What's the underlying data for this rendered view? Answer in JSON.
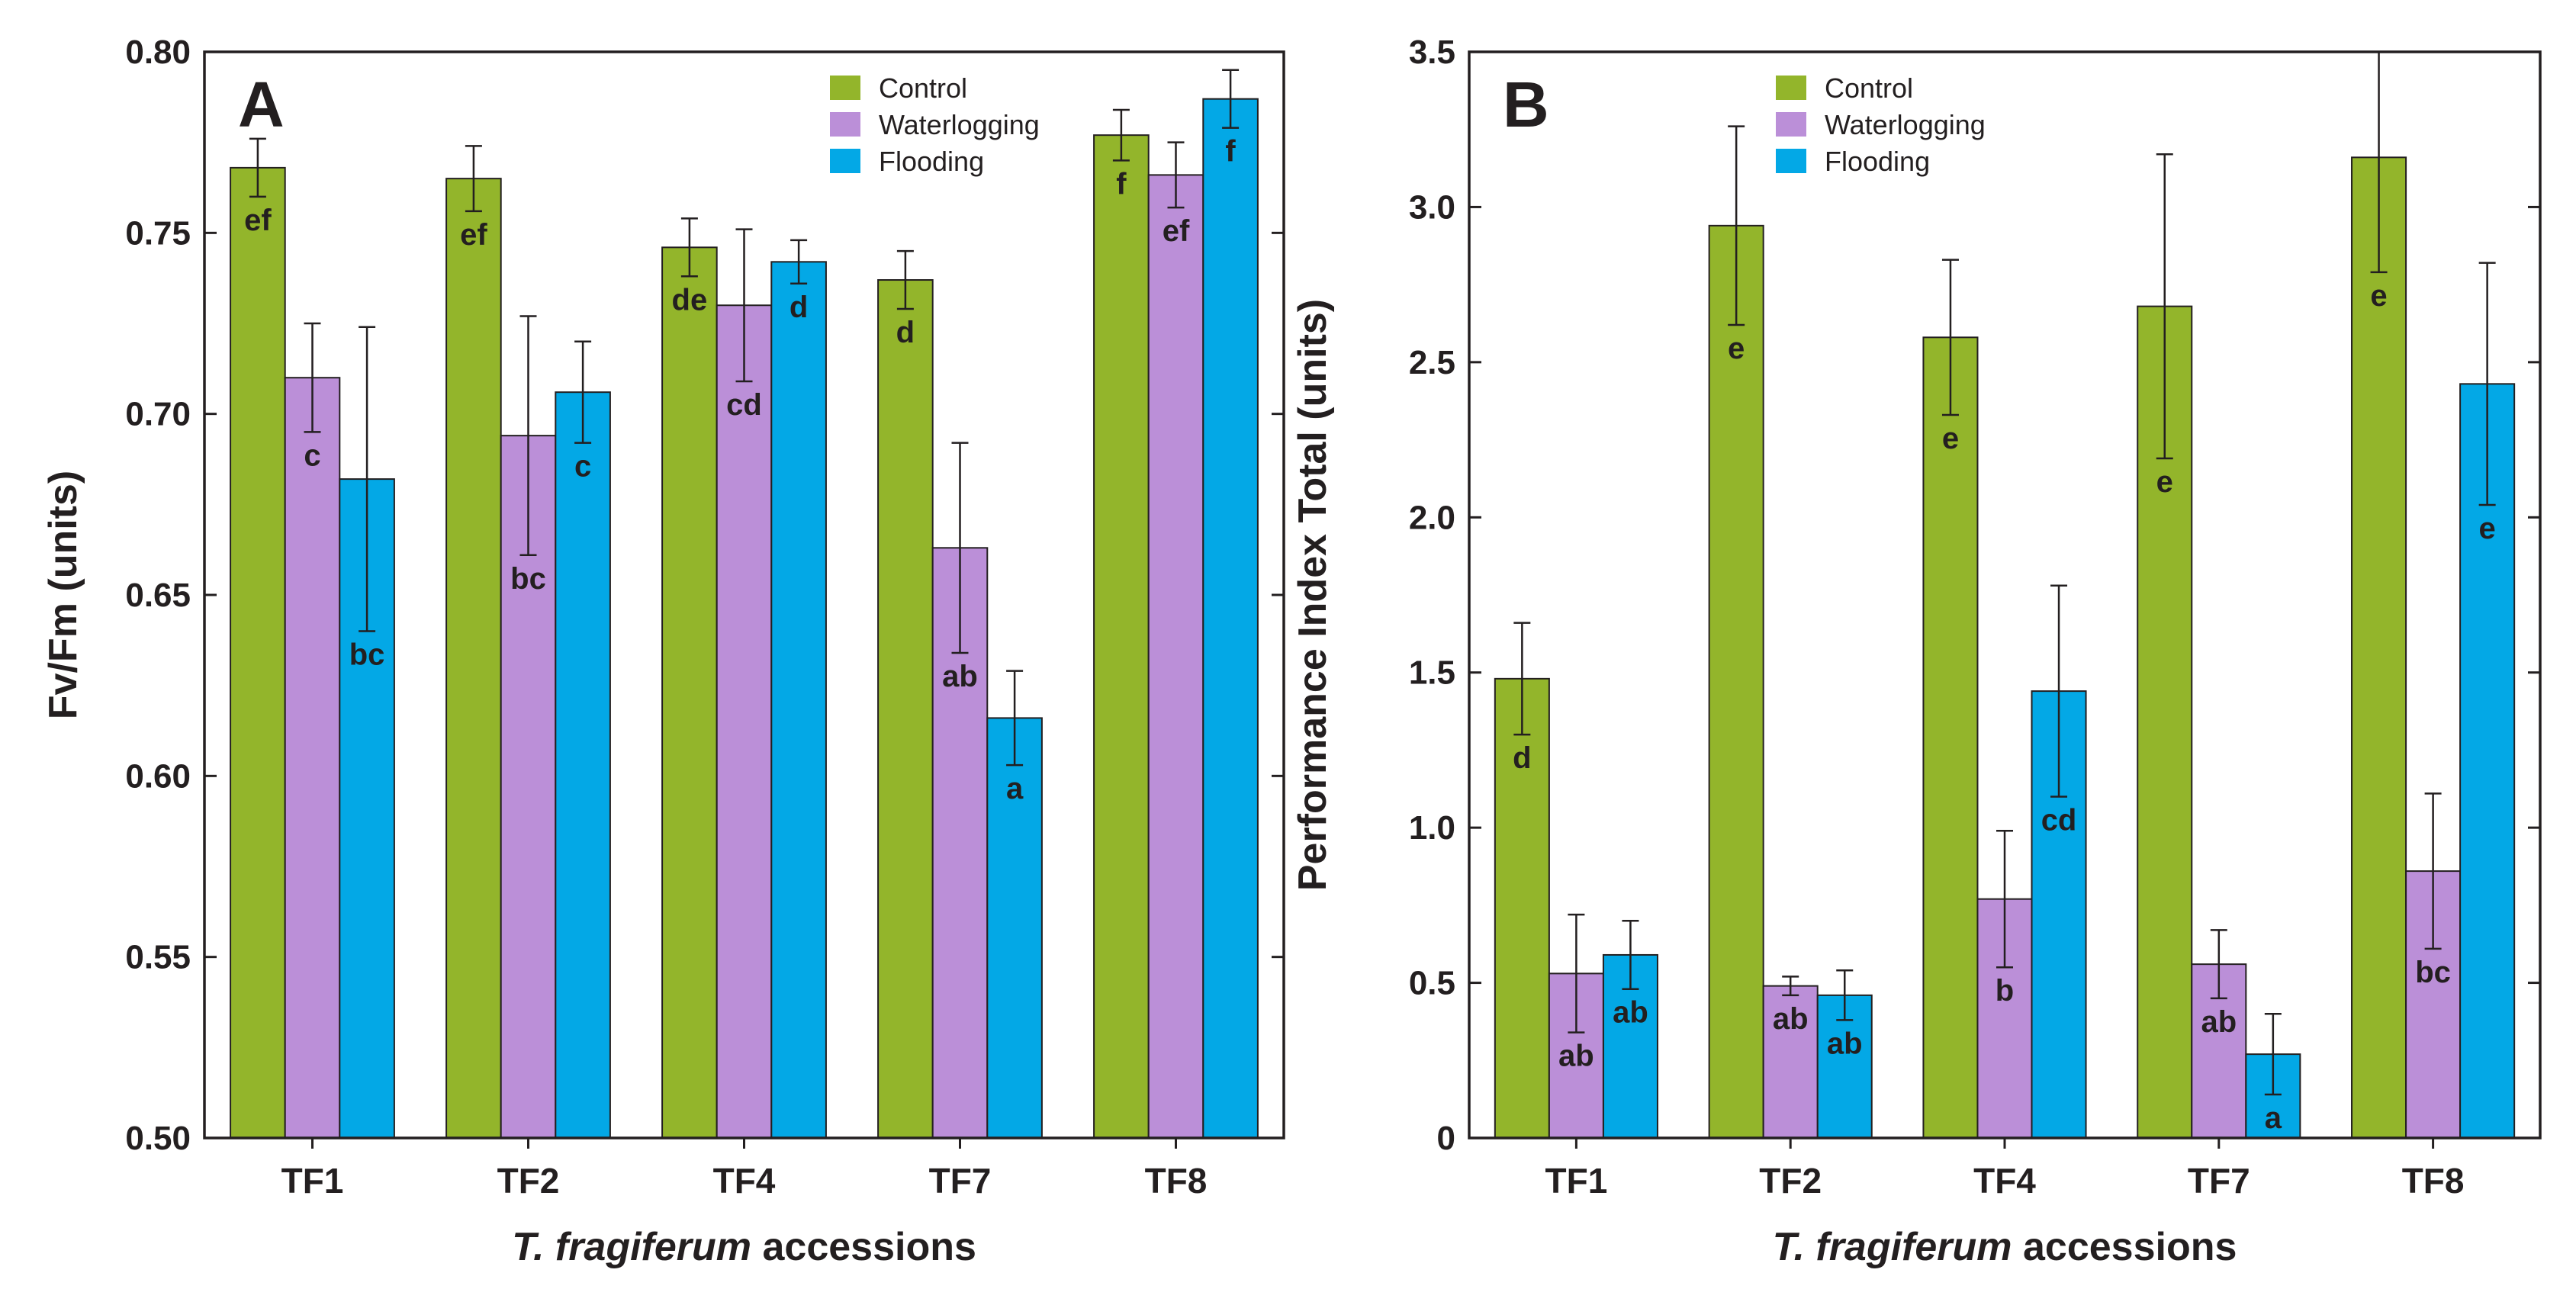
{
  "chart_data": [
    {
      "panel": "A",
      "type": "bar",
      "ylabel": "Fv/Fm (units)",
      "xlabel_italic": "T. fragiferum",
      "xlabel_rest": " accessions",
      "categories": [
        "TF1",
        "TF2",
        "TF4",
        "TF7",
        "TF8"
      ],
      "ylim": [
        0.5,
        0.8
      ],
      "yticks": [
        0.5,
        0.55,
        0.6,
        0.65,
        0.7,
        0.75,
        0.8
      ],
      "ytick_labels": [
        "0.50",
        "0.55",
        "0.60",
        "0.65",
        "0.70",
        "0.75",
        "0.80"
      ],
      "legend_position": "top-right",
      "series": [
        {
          "name": "Control",
          "color": "#93b52b",
          "values": [
            0.768,
            0.765,
            0.746,
            0.737,
            0.777
          ],
          "errors": [
            0.008,
            0.009,
            0.008,
            0.008,
            0.007
          ],
          "letters": [
            "ef",
            "ef",
            "de",
            "d",
            "f"
          ]
        },
        {
          "name": "Waterlogging",
          "color": "#bb8fd8",
          "values": [
            0.71,
            0.694,
            0.73,
            0.663,
            0.766
          ],
          "errors": [
            0.015,
            0.033,
            0.021,
            0.029,
            0.009
          ],
          "letters": [
            "c",
            "bc",
            "cd",
            "ab",
            "ef"
          ]
        },
        {
          "name": "Flooding",
          "color": "#03a8e6",
          "values": [
            0.682,
            0.706,
            0.742,
            0.616,
            0.787
          ],
          "errors": [
            0.042,
            0.014,
            0.006,
            0.013,
            0.008
          ],
          "letters": [
            "bc",
            "c",
            "d",
            "a",
            "f"
          ]
        }
      ]
    },
    {
      "panel": "B",
      "type": "bar",
      "ylabel": "Performance Index Total (units)",
      "xlabel_italic": "T. fragiferum",
      "xlabel_rest": " accessions",
      "categories": [
        "TF1",
        "TF2",
        "TF4",
        "TF7",
        "TF8"
      ],
      "ylim": [
        0,
        3.5
      ],
      "yticks": [
        0,
        0.5,
        1.0,
        1.5,
        2.0,
        2.5,
        3.0,
        3.5
      ],
      "ytick_labels": [
        "0",
        "0.5",
        "1.0",
        "1.5",
        "2.0",
        "2.5",
        "3.0",
        "3.5"
      ],
      "legend_position": "top-left",
      "series": [
        {
          "name": "Control",
          "color": "#93b52b",
          "values": [
            1.48,
            2.94,
            2.58,
            2.68,
            3.16
          ],
          "errors": [
            0.18,
            0.32,
            0.25,
            0.49,
            0.37
          ],
          "letters": [
            "d",
            "e",
            "e",
            "e",
            "e"
          ]
        },
        {
          "name": "Waterlogging",
          "color": "#bb8fd8",
          "values": [
            0.53,
            0.49,
            0.77,
            0.56,
            0.86
          ],
          "errors": [
            0.19,
            0.03,
            0.22,
            0.11,
            0.25
          ],
          "letters": [
            "ab",
            "ab",
            "b",
            "ab",
            "bc"
          ]
        },
        {
          "name": "Flooding",
          "color": "#03a8e6",
          "values": [
            0.59,
            0.46,
            1.44,
            0.27,
            2.43
          ],
          "errors": [
            0.11,
            0.08,
            0.34,
            0.13,
            0.39
          ],
          "letters": [
            "ab",
            "ab",
            "cd",
            "a",
            "e"
          ]
        }
      ]
    }
  ]
}
